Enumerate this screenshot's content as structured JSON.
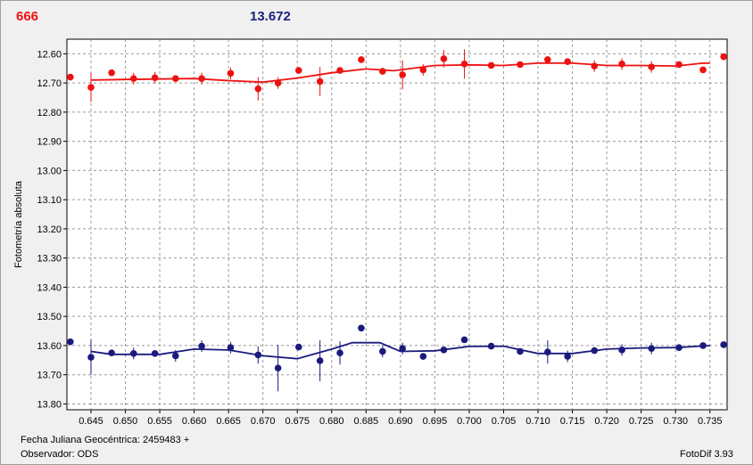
{
  "header": {
    "object_name": "666",
    "magnitude": "13.672"
  },
  "footer": {
    "jd_label": "Fecha Juliana Geocéntrica: 2459483 +",
    "observer_label": "Observador: ODS",
    "software": "FotoDif 3.93"
  },
  "colors": {
    "object": "#ee1111",
    "comparison": "#1a1a7e",
    "grid": "#9a9a9a"
  },
  "chart_data": {
    "type": "scatter",
    "title": "",
    "xlabel": "",
    "ylabel": "Fotometría absoluta",
    "xlim": [
      0.6415,
      0.7375
    ],
    "ylim": [
      12.55,
      13.82
    ],
    "y_inverted": true,
    "grid": true,
    "x_ticks": [
      0.645,
      0.65,
      0.655,
      0.66,
      0.665,
      0.67,
      0.675,
      0.68,
      0.685,
      0.69,
      0.695,
      0.7,
      0.705,
      0.71,
      0.715,
      0.72,
      0.725,
      0.73,
      0.735
    ],
    "x_tick_labels": [
      "0.645",
      "0.650",
      "0.655",
      "0.660",
      "0.665",
      "0.670",
      "0.675",
      "0.680",
      "0.685",
      "0.690",
      "0.695",
      "0.700",
      "0.705",
      "0.710",
      "0.715",
      "0.720",
      "0.725",
      "0.730",
      "0.735"
    ],
    "y_ticks": [
      12.6,
      12.7,
      12.8,
      12.9,
      13.0,
      13.1,
      13.2,
      13.3,
      13.4,
      13.5,
      13.6,
      13.7,
      13.8
    ],
    "y_tick_labels": [
      "12.60",
      "12.70",
      "12.80",
      "12.90",
      "13.00",
      "13.10",
      "13.20",
      "13.30",
      "13.40",
      "13.50",
      "13.60",
      "13.70",
      "13.80"
    ],
    "series": [
      {
        "color": "#ee1111",
        "points": [
          {
            "x": 0.642,
            "y": 12.68,
            "err": 0.01
          },
          {
            "x": 0.645,
            "y": 12.715,
            "err": 0.05
          },
          {
            "x": 0.648,
            "y": 12.665,
            "err": 0.01
          },
          {
            "x": 0.6512,
            "y": 12.685,
            "err": 0.02
          },
          {
            "x": 0.6543,
            "y": 12.682,
            "err": 0.02
          },
          {
            "x": 0.6573,
            "y": 12.685,
            "err": 0.01
          },
          {
            "x": 0.6611,
            "y": 12.685,
            "err": 0.02
          },
          {
            "x": 0.6653,
            "y": 12.667,
            "err": 0.02
          },
          {
            "x": 0.6693,
            "y": 12.72,
            "err": 0.04
          },
          {
            "x": 0.6722,
            "y": 12.7,
            "err": 0.02
          },
          {
            "x": 0.6752,
            "y": 12.657,
            "err": 0.01
          },
          {
            "x": 0.6783,
            "y": 12.695,
            "err": 0.05
          },
          {
            "x": 0.6812,
            "y": 12.657,
            "err": 0.01
          },
          {
            "x": 0.6843,
            "y": 12.62,
            "err": 0.01
          },
          {
            "x": 0.6874,
            "y": 12.66,
            "err": 0.01
          },
          {
            "x": 0.6903,
            "y": 12.672,
            "err": 0.05
          },
          {
            "x": 0.6933,
            "y": 12.655,
            "err": 0.02
          },
          {
            "x": 0.6963,
            "y": 12.617,
            "err": 0.03
          },
          {
            "x": 0.6993,
            "y": 12.635,
            "err": 0.05
          },
          {
            "x": 0.7032,
            "y": 12.64,
            "err": 0.01
          },
          {
            "x": 0.7074,
            "y": 12.637,
            "err": 0.01
          },
          {
            "x": 0.7114,
            "y": 12.62,
            "err": 0.01
          },
          {
            "x": 0.7143,
            "y": 12.627,
            "err": 0.01
          },
          {
            "x": 0.7182,
            "y": 12.642,
            "err": 0.02
          },
          {
            "x": 0.7222,
            "y": 12.635,
            "err": 0.02
          },
          {
            "x": 0.7265,
            "y": 12.645,
            "err": 0.02
          },
          {
            "x": 0.7305,
            "y": 12.637,
            "err": 0.01
          },
          {
            "x": 0.734,
            "y": 12.655,
            "err": 0.01
          },
          {
            "x": 0.737,
            "y": 12.61,
            "err": 0.01
          }
        ],
        "fit": [
          [
            0.645,
            12.69
          ],
          [
            0.65,
            12.688
          ],
          [
            0.66,
            12.685
          ],
          [
            0.665,
            12.692
          ],
          [
            0.67,
            12.697
          ],
          [
            0.675,
            12.683
          ],
          [
            0.68,
            12.665
          ],
          [
            0.685,
            12.652
          ],
          [
            0.689,
            12.658
          ],
          [
            0.695,
            12.64
          ],
          [
            0.7,
            12.638
          ],
          [
            0.705,
            12.64
          ],
          [
            0.71,
            12.632
          ],
          [
            0.715,
            12.632
          ],
          [
            0.72,
            12.64
          ],
          [
            0.725,
            12.64
          ],
          [
            0.73,
            12.642
          ],
          [
            0.734,
            12.632
          ],
          [
            0.735,
            12.632
          ]
        ]
      },
      {
        "color": "#1a1a7e",
        "points": [
          {
            "x": 0.642,
            "y": 13.587,
            "err": 0.01
          },
          {
            "x": 0.645,
            "y": 13.64,
            "err": 0.06
          },
          {
            "x": 0.648,
            "y": 13.625,
            "err": 0.01
          },
          {
            "x": 0.6512,
            "y": 13.627,
            "err": 0.02
          },
          {
            "x": 0.6543,
            "y": 13.627,
            "err": 0.01
          },
          {
            "x": 0.6573,
            "y": 13.635,
            "err": 0.02
          },
          {
            "x": 0.6611,
            "y": 13.602,
            "err": 0.02
          },
          {
            "x": 0.6653,
            "y": 13.607,
            "err": 0.02
          },
          {
            "x": 0.6693,
            "y": 13.632,
            "err": 0.03
          },
          {
            "x": 0.6722,
            "y": 13.677,
            "err": 0.08
          },
          {
            "x": 0.6752,
            "y": 13.605,
            "err": 0.01
          },
          {
            "x": 0.6783,
            "y": 13.652,
            "err": 0.07
          },
          {
            "x": 0.6812,
            "y": 13.625,
            "err": 0.04
          },
          {
            "x": 0.6843,
            "y": 13.54,
            "err": 0.01
          },
          {
            "x": 0.6874,
            "y": 13.62,
            "err": 0.02
          },
          {
            "x": 0.6903,
            "y": 13.61,
            "err": 0.02
          },
          {
            "x": 0.6933,
            "y": 13.637,
            "err": 0.01
          },
          {
            "x": 0.6963,
            "y": 13.615,
            "err": 0.01
          },
          {
            "x": 0.6993,
            "y": 13.58,
            "err": 0.01
          },
          {
            "x": 0.7032,
            "y": 13.602,
            "err": 0.01
          },
          {
            "x": 0.7074,
            "y": 13.62,
            "err": 0.01
          },
          {
            "x": 0.7114,
            "y": 13.622,
            "err": 0.04
          },
          {
            "x": 0.7143,
            "y": 13.637,
            "err": 0.02
          },
          {
            "x": 0.7182,
            "y": 13.617,
            "err": 0.01
          },
          {
            "x": 0.7222,
            "y": 13.615,
            "err": 0.02
          },
          {
            "x": 0.7265,
            "y": 13.61,
            "err": 0.02
          },
          {
            "x": 0.7305,
            "y": 13.607,
            "err": 0.01
          },
          {
            "x": 0.734,
            "y": 13.6,
            "err": 0.01
          },
          {
            "x": 0.737,
            "y": 13.597,
            "err": 0.01
          }
        ],
        "fit": [
          [
            0.645,
            13.62
          ],
          [
            0.648,
            13.63
          ],
          [
            0.655,
            13.63
          ],
          [
            0.66,
            13.612
          ],
          [
            0.665,
            13.615
          ],
          [
            0.67,
            13.635
          ],
          [
            0.675,
            13.645
          ],
          [
            0.68,
            13.612
          ],
          [
            0.683,
            13.59
          ],
          [
            0.687,
            13.59
          ],
          [
            0.69,
            13.62
          ],
          [
            0.695,
            13.618
          ],
          [
            0.7,
            13.603
          ],
          [
            0.705,
            13.602
          ],
          [
            0.71,
            13.627
          ],
          [
            0.715,
            13.627
          ],
          [
            0.72,
            13.612
          ],
          [
            0.725,
            13.608
          ],
          [
            0.73,
            13.607
          ],
          [
            0.735,
            13.6
          ]
        ]
      }
    ]
  }
}
